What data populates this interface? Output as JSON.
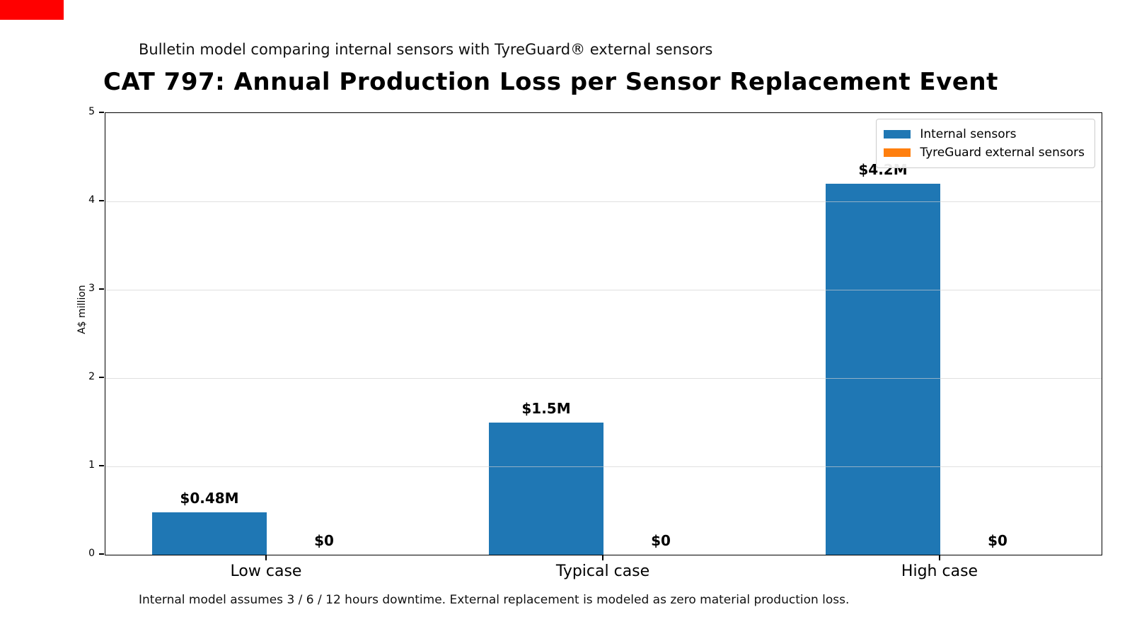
{
  "badge": {
    "color": "#ff0000"
  },
  "header": {
    "subtitle": "Bulletin model comparing internal sensors with TyreGuard® external sensors",
    "title": "CAT 797: Annual Production Loss per Sensor Replacement Event"
  },
  "footnote": "Internal model assumes 3 / 6 / 12 hours downtime. External replacement is modeled as zero material production loss.",
  "chart_data": {
    "type": "bar",
    "title": "CAT 797: Annual Production Loss per Sensor Replacement Event",
    "subtitle": "Bulletin model comparing internal sensors with TyreGuard® external sensors",
    "categories": [
      "Low case",
      "Typical case",
      "High case"
    ],
    "series": [
      {
        "name": "Internal sensors",
        "color": "#1f77b4",
        "values": [
          0.48,
          1.5,
          4.2
        ],
        "labels": [
          "$0.48M",
          "$1.5M",
          "$4.2M"
        ]
      },
      {
        "name": "TyreGuard external sensors",
        "color": "#ff7f0e",
        "values": [
          0,
          0,
          0
        ],
        "labels": [
          "$0",
          "$0",
          "$0"
        ]
      }
    ],
    "xlabel": "",
    "ylabel": "A$ million",
    "ylim": [
      0,
      5
    ],
    "yticks": [
      0,
      1,
      2,
      3,
      4,
      5
    ],
    "grid": "horizontal",
    "legend_position": "upper right",
    "annotation": "Internal model assumes 3 / 6 / 12 hours downtime. External replacement is modeled as zero material production loss."
  }
}
